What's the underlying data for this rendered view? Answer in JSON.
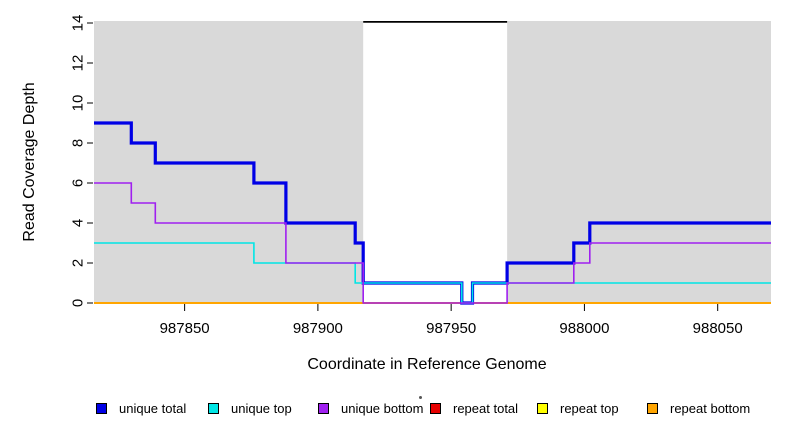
{
  "figure": {
    "xlabel": "Coordinate in Reference Genome",
    "ylabel": "Read Coverage Depth",
    "panel_background": "#d9d9d9",
    "page_background": "#ffffff"
  },
  "chart_data": {
    "type": "line",
    "step": true,
    "title": "",
    "xlabel": "Coordinate in Reference Genome",
    "ylabel": "Read Coverage Depth",
    "xlim": [
      987816,
      988070
    ],
    "ylim": [
      0,
      14
    ],
    "x_ticks": [
      987850,
      987900,
      987950,
      988000,
      988050
    ],
    "y_ticks": [
      0,
      2,
      4,
      6,
      8,
      10,
      12,
      14
    ],
    "grid": false,
    "panel_background": "#d9d9d9",
    "highlight_region": {
      "name": "repeat-region",
      "start": 987917,
      "end": 987971,
      "fill": "#ffffff",
      "top_line_color": "#000000",
      "top_line_value": 14
    },
    "series": [
      {
        "name": "repeat total",
        "color": "#e60000",
        "width": 1.6,
        "breakpoints": [
          [
            987816,
            0
          ]
        ]
      },
      {
        "name": "repeat top",
        "color": "#ffff00",
        "width": 1.6,
        "breakpoints": [
          [
            987816,
            0
          ]
        ]
      },
      {
        "name": "repeat bottom",
        "color": "#ffa500",
        "width": 2,
        "breakpoints": [
          [
            987816,
            0
          ]
        ]
      },
      {
        "name": "unique total",
        "color": "#0000e6",
        "width": 3.2,
        "breakpoints": [
          [
            987816,
            9
          ],
          [
            987830,
            8
          ],
          [
            987839,
            7
          ],
          [
            987876,
            6
          ],
          [
            987888,
            4
          ],
          [
            987914,
            3
          ],
          [
            987917,
            1
          ],
          [
            987954,
            0
          ],
          [
            987958,
            1
          ],
          [
            987971,
            2
          ],
          [
            987996,
            3
          ],
          [
            988002,
            4
          ]
        ]
      },
      {
        "name": "unique top",
        "color": "#00e6e6",
        "width": 1.6,
        "breakpoints": [
          [
            987816,
            3
          ],
          [
            987876,
            2
          ],
          [
            987914,
            1
          ],
          [
            987954,
            0
          ],
          [
            987958,
            1
          ]
        ]
      },
      {
        "name": "unique bottom",
        "color": "#a020f0",
        "width": 1.6,
        "breakpoints": [
          [
            987816,
            6
          ],
          [
            987830,
            5
          ],
          [
            987839,
            4
          ],
          [
            987888,
            2
          ],
          [
            987917,
            0
          ],
          [
            987971,
            1
          ],
          [
            987996,
            2
          ],
          [
            988002,
            3
          ]
        ]
      }
    ],
    "legend": {
      "position": "bottom",
      "entries": [
        {
          "label": "unique total",
          "color": "#0000e6"
        },
        {
          "label": "unique top",
          "color": "#00e6e6"
        },
        {
          "label": "unique bottom",
          "color": "#a020f0"
        },
        {
          "label": "repeat total",
          "color": "#e60000"
        },
        {
          "label": "repeat top",
          "color": "#ffff00"
        },
        {
          "label": "repeat bottom",
          "color": "#ffa500"
        }
      ]
    }
  }
}
